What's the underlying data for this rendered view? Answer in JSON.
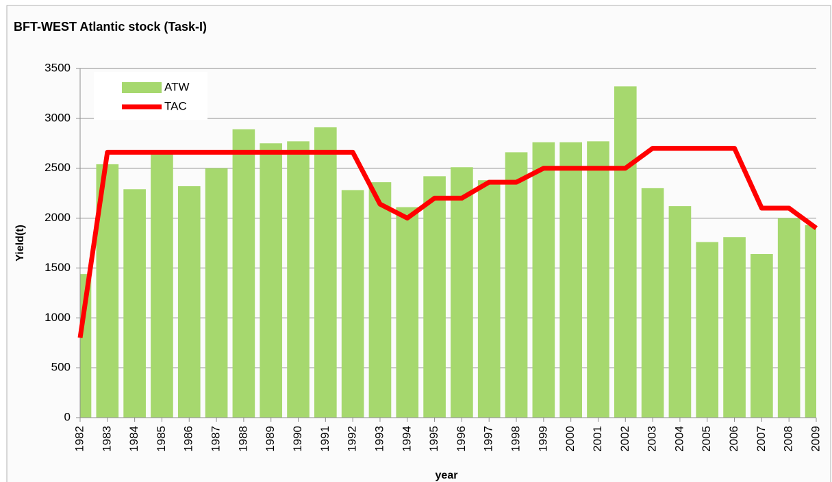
{
  "chart_data": {
    "type": "bar_line",
    "title": "BFT-WEST Atlantic stock  (Task-I)",
    "x_label": "year",
    "y_label": "Yield(t)",
    "categories": [
      "1982",
      "1983",
      "1984",
      "1985",
      "1986",
      "1987",
      "1988",
      "1989",
      "1990",
      "1991",
      "1992",
      "1993",
      "1994",
      "1995",
      "1996",
      "1997",
      "1998",
      "1999",
      "2000",
      "2001",
      "2002",
      "2003",
      "2004",
      "2005",
      "2006",
      "2007",
      "2008",
      "2009"
    ],
    "series": [
      {
        "name": "ATW",
        "type": "bar",
        "color": "#a6d86e",
        "values": [
          1440,
          2540,
          2290,
          2660,
          2320,
          2500,
          2890,
          2750,
          2770,
          2910,
          2280,
          2360,
          2110,
          2420,
          2510,
          2380,
          2660,
          2760,
          2760,
          2770,
          3320,
          2300,
          2120,
          1760,
          1810,
          1640,
          2000,
          1930
        ]
      },
      {
        "name": "TAC",
        "type": "line",
        "color": "#ff0000",
        "values": [
          800,
          2660,
          2660,
          2660,
          2660,
          2660,
          2660,
          2660,
          2660,
          2660,
          2660,
          2140,
          2000,
          2200,
          2200,
          2360,
          2360,
          2500,
          2500,
          2500,
          2500,
          2700,
          2700,
          2700,
          2700,
          2100,
          2100,
          1900
        ]
      }
    ],
    "ylim": [
      0,
      3500
    ],
    "yticks": [
      0,
      500,
      1000,
      1500,
      2000,
      2500,
      3000,
      3500
    ],
    "grid": true,
    "legend": "top-left"
  }
}
